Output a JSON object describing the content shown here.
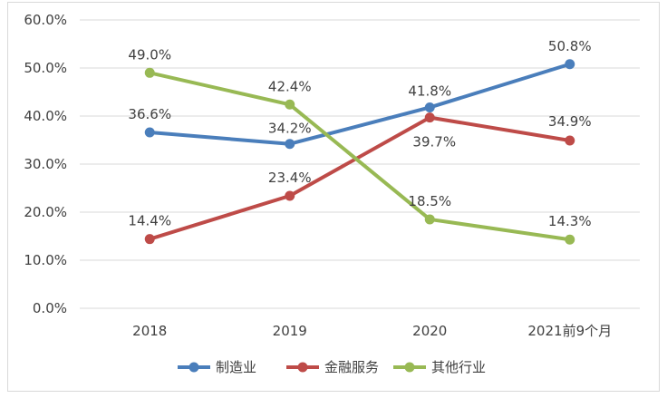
{
  "chart_data": {
    "type": "line",
    "categories": [
      "2018",
      "2019",
      "2020",
      "2021前9个月"
    ],
    "y_ticks": [
      "0.0%",
      "10.0%",
      "20.0%",
      "30.0%",
      "40.0%",
      "50.0%",
      "60.0%"
    ],
    "ylim": [
      0,
      60
    ],
    "grid": true,
    "legend_position": "bottom",
    "series": [
      {
        "name": "制造业",
        "color": "#4a7ebb",
        "values": [
          36.6,
          34.2,
          41.8,
          50.8
        ],
        "labels": [
          "36.6%",
          "34.2%",
          "41.8%",
          "50.8%"
        ]
      },
      {
        "name": "金融服务",
        "color": "#be4b48",
        "values": [
          14.4,
          23.4,
          39.7,
          34.9
        ],
        "labels": [
          "14.4%",
          "23.4%",
          "39.7%",
          "34.9%"
        ]
      },
      {
        "name": "其他行业",
        "color": "#98b954",
        "values": [
          49.0,
          42.4,
          18.5,
          14.3
        ],
        "labels": [
          "49.0%",
          "42.4%",
          "18.5%",
          "14.3%"
        ]
      }
    ]
  }
}
